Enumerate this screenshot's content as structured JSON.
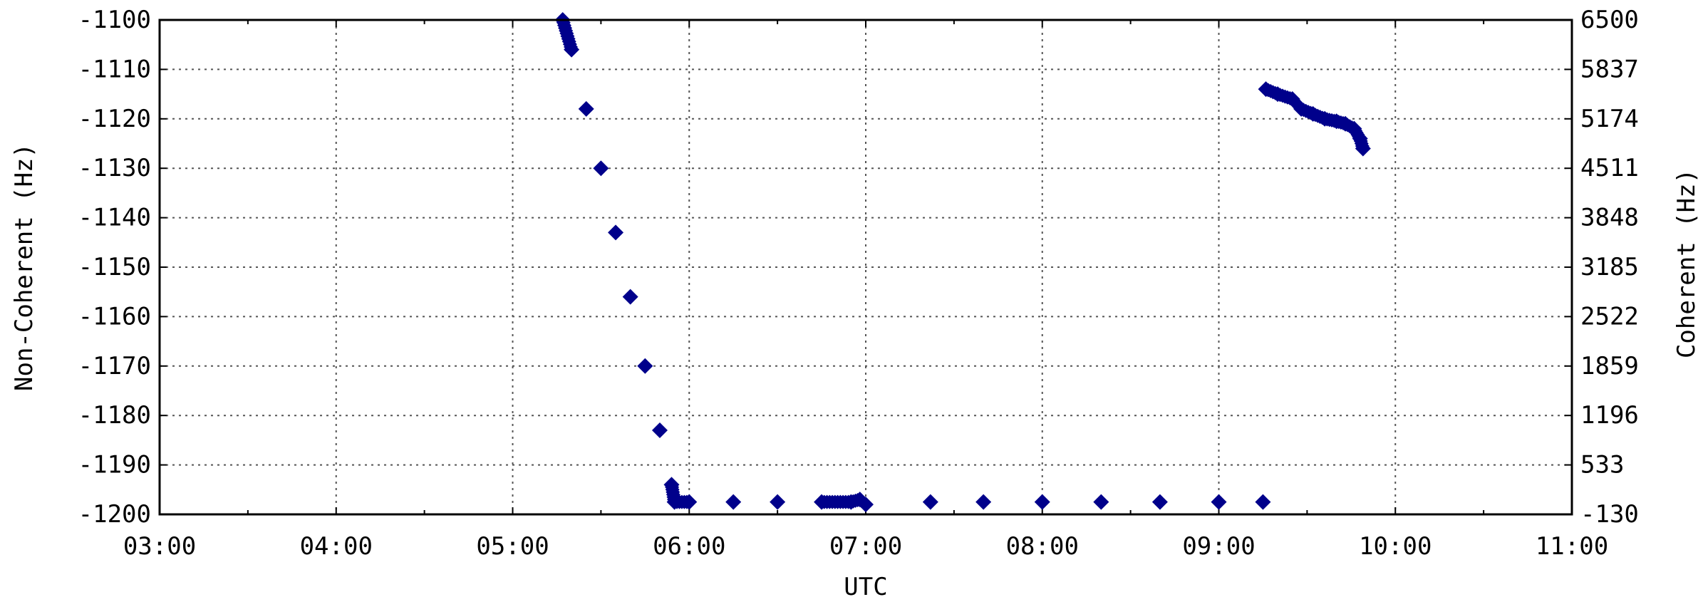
{
  "chart_data": {
    "type": "scatter",
    "title": "",
    "xlabel": "UTC",
    "ylabel_left": "Non-Coherent (Hz)",
    "ylabel_right": "Coherent (Hz)",
    "xlim": [
      "03:00",
      "11:00"
    ],
    "ylim_left": [
      -1200,
      -1100
    ],
    "ylim_right": [
      -130,
      6500
    ],
    "grid": true,
    "x_ticks": [
      "03:00",
      "04:00",
      "05:00",
      "06:00",
      "07:00",
      "08:00",
      "09:00",
      "10:00",
      "11:00"
    ],
    "y_ticks_left": [
      "-1200",
      "-1190",
      "-1180",
      "-1170",
      "-1160",
      "-1150",
      "-1140",
      "-1130",
      "-1120",
      "-1110",
      "-1100"
    ],
    "y_ticks_right": [
      "-130",
      "533",
      "1196",
      "1859",
      "2522",
      "3185",
      "3848",
      "4511",
      "5174",
      "5837",
      "6500"
    ],
    "marker_color": "#00008b",
    "series": [
      {
        "axis": "left",
        "points": [
          [
            "05:17",
            -1100
          ],
          [
            "05:20",
            -1106
          ],
          [
            "05:25",
            -1118
          ],
          [
            "05:30",
            -1130
          ],
          [
            "05:35",
            -1143
          ],
          [
            "05:40",
            -1156
          ],
          [
            "05:45",
            -1170
          ],
          [
            "05:50",
            -1183
          ],
          [
            "05:54",
            -1194
          ],
          [
            "05:55",
            -1197.5
          ],
          [
            "06:00",
            -1197.5
          ],
          [
            "06:15",
            -1197.5
          ],
          [
            "06:30",
            -1197.5
          ],
          [
            "06:45",
            -1197.5
          ],
          [
            "06:55",
            -1197.5
          ],
          [
            "06:58",
            -1197
          ],
          [
            "07:00",
            -1198
          ],
          [
            "07:22",
            -1197.5
          ],
          [
            "07:40",
            -1197.5
          ],
          [
            "08:00",
            -1197.5
          ],
          [
            "08:20",
            -1197.5
          ],
          [
            "08:40",
            -1197.5
          ],
          [
            "09:00",
            -1197.5
          ],
          [
            "09:15",
            -1197.5
          ]
        ]
      },
      {
        "axis": "left",
        "points": [
          [
            "09:16",
            -1114
          ],
          [
            "09:20",
            -1115
          ],
          [
            "09:25",
            -1116
          ],
          [
            "09:28",
            -1118
          ],
          [
            "09:32",
            -1119
          ],
          [
            "09:36",
            -1120
          ],
          [
            "09:40",
            -1120.5
          ],
          [
            "09:43",
            -1121
          ],
          [
            "09:46",
            -1122
          ],
          [
            "09:48",
            -1124
          ],
          [
            "09:49",
            -1126
          ]
        ]
      }
    ]
  }
}
